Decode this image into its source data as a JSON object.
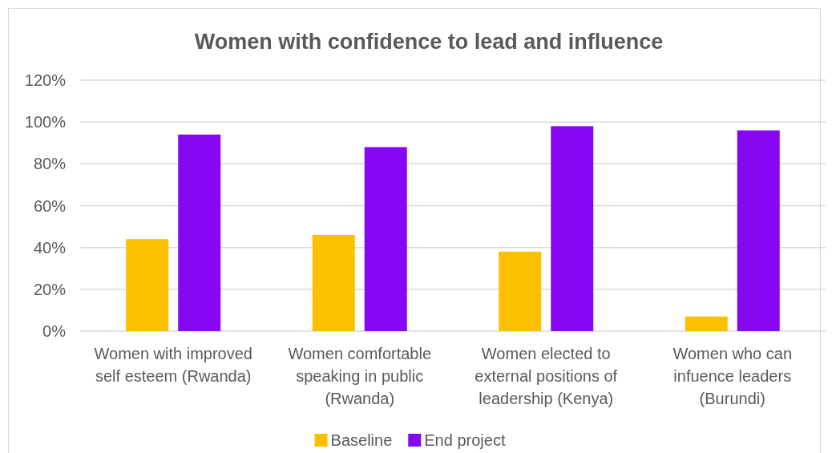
{
  "chart_data": {
    "type": "bar",
    "title": "Women with confidence to lead and influence",
    "categories": [
      "Women with improved self esteem (Rwanda)",
      "Women comfortable speaking in public (Rwanda)",
      "Women elected to external positions of leadership (Kenya)",
      "Women who can infuence leaders (Burundi)"
    ],
    "series": [
      {
        "name": "Baseline",
        "color": "#fcc000",
        "values": [
          44,
          46,
          38,
          7
        ]
      },
      {
        "name": "End project",
        "color": "#8608f2",
        "values": [
          94,
          88,
          98,
          96
        ]
      }
    ],
    "ylim": [
      0,
      120
    ],
    "yticks": [
      {
        "value": 0,
        "label": "0%"
      },
      {
        "value": 20,
        "label": "20%"
      },
      {
        "value": 40,
        "label": "40%"
      },
      {
        "value": 60,
        "label": "60%"
      },
      {
        "value": 80,
        "label": "80%"
      },
      {
        "value": 100,
        "label": "100%"
      },
      {
        "value": 120,
        "label": "120%"
      }
    ],
    "grid": "y",
    "legend": "bottom"
  }
}
